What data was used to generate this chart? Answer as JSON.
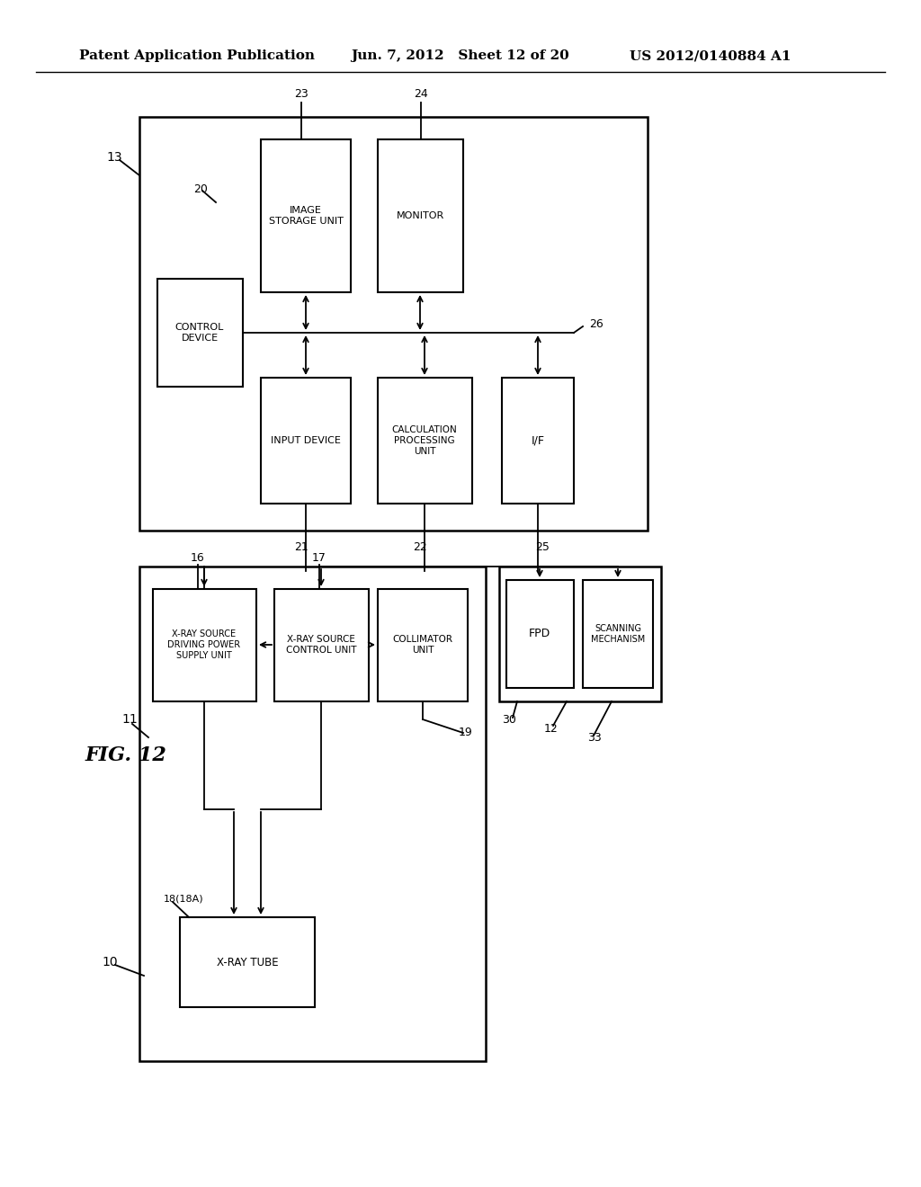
{
  "header_left": "Patent Application Publication",
  "header_mid": "Jun. 7, 2012   Sheet 12 of 20",
  "header_right": "US 2012/0140884 A1",
  "fig_label": "FIG. 12",
  "bg_color": "#ffffff",
  "line_color": "#000000",
  "text_color": "#000000"
}
